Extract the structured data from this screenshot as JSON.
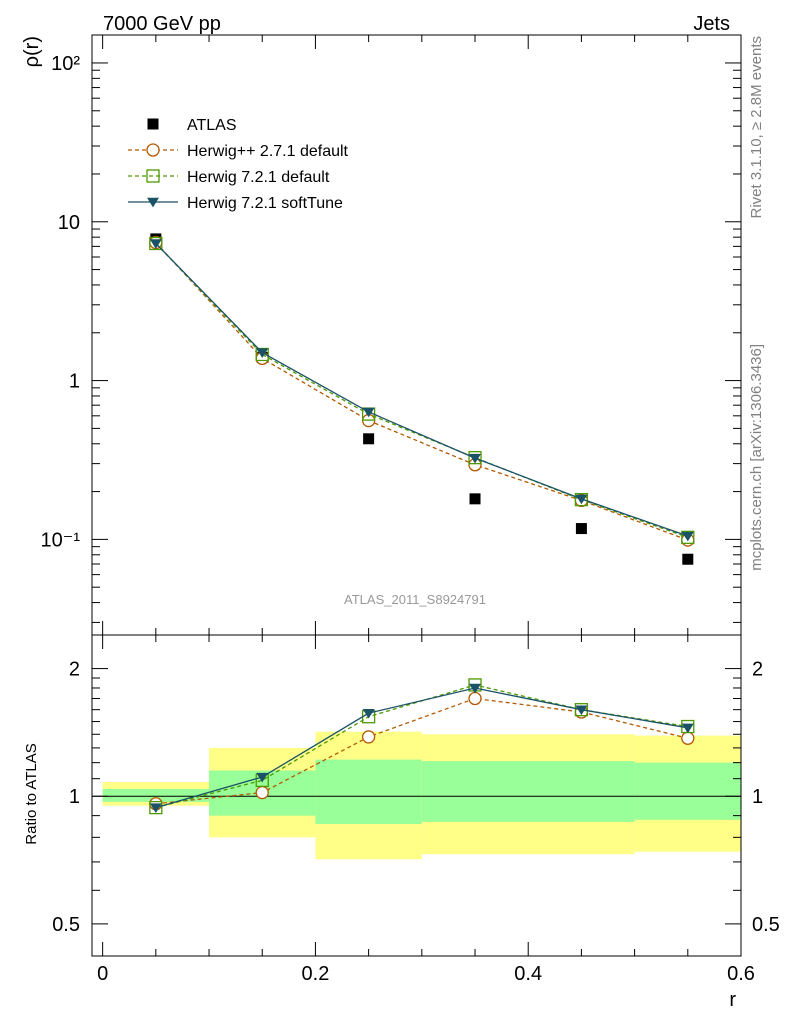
{
  "header": {
    "left": "7000 GeV pp",
    "right": "Jets"
  },
  "side_text": {
    "top": "Rivet 3.1.10, ≥ 2.8M events",
    "bottom": "mcplots.cern.ch [arXiv:1306.3436]"
  },
  "watermark": "ATLAS_2011_S8924791",
  "chart_data": [
    {
      "type": "scatter",
      "panel": "main",
      "ylabel": "ρ(r)",
      "y_scale": "log",
      "ylim": [
        0.025,
        150
      ],
      "xlim": [
        -0.01,
        0.6
      ],
      "x": [
        0.05,
        0.15,
        0.25,
        0.35,
        0.45,
        0.55
      ],
      "y_tick_labels": [
        "10⁻¹",
        "1",
        "10",
        "10²"
      ],
      "legend_position": "top-left",
      "series": [
        {
          "name": "ATLAS",
          "marker": "square-filled",
          "color": "#000000",
          "line": "none",
          "values": [
            7.8,
            1.4,
            0.43,
            0.18,
            0.117,
            0.075
          ]
        },
        {
          "name": "Herwig++ 2.7.1 default",
          "marker": "circle-open",
          "color": "#b35900",
          "line": "dashed",
          "values": [
            7.4,
            1.38,
            0.56,
            0.295,
            0.176,
            0.099
          ]
        },
        {
          "name": "Herwig 7.2.1 default",
          "marker": "square-open",
          "color": "#4d9900",
          "line": "dashed",
          "values": [
            7.3,
            1.46,
            0.615,
            0.327,
            0.178,
            0.103
          ]
        },
        {
          "name": "Herwig 7.2.1 softTune",
          "marker": "triangle-down-filled",
          "color": "#1a5266",
          "line": "solid",
          "values": [
            7.3,
            1.5,
            0.635,
            0.325,
            0.18,
            0.105
          ]
        }
      ]
    },
    {
      "type": "line",
      "panel": "ratio",
      "ylabel": "Ratio to ATLAS",
      "xlabel": "r",
      "y_scale": "log",
      "ylim": [
        0.42,
        2.4
      ],
      "xlim": [
        -0.01,
        0.6
      ],
      "x": [
        0.05,
        0.15,
        0.25,
        0.35,
        0.45,
        0.55
      ],
      "x_tick_labels": [
        "0",
        "0.2",
        "0.4",
        "0.6"
      ],
      "y_tick_labels": [
        "0.5",
        "1",
        "2"
      ],
      "bands": [
        {
          "x0": 0.0,
          "x1": 0.1,
          "yellow": [
            0.95,
            1.08
          ],
          "green": [
            0.97,
            1.04
          ]
        },
        {
          "x0": 0.1,
          "x1": 0.2,
          "yellow": [
            0.8,
            1.3
          ],
          "green": [
            0.9,
            1.15
          ]
        },
        {
          "x0": 0.2,
          "x1": 0.3,
          "yellow": [
            0.71,
            1.42
          ],
          "green": [
            0.86,
            1.22
          ]
        },
        {
          "x0": 0.3,
          "x1": 0.5,
          "yellow": [
            0.73,
            1.4
          ],
          "green": [
            0.87,
            1.21
          ]
        },
        {
          "x0": 0.5,
          "x1": 0.6,
          "yellow": [
            0.74,
            1.39
          ],
          "green": [
            0.88,
            1.2
          ]
        }
      ],
      "series": [
        {
          "name": "Herwig++ 2.7.1 default",
          "marker": "circle-open",
          "color": "#b35900",
          "line": "dashed",
          "values": [
            0.96,
            1.02,
            1.38,
            1.7,
            1.58,
            1.37
          ]
        },
        {
          "name": "Herwig 7.2.1 default",
          "marker": "square-open",
          "color": "#4d9900",
          "line": "dashed",
          "values": [
            0.94,
            1.09,
            1.54,
            1.83,
            1.6,
            1.46
          ]
        },
        {
          "name": "Herwig 7.2.1 softTune",
          "marker": "triangle-down-filled",
          "color": "#1a5266",
          "line": "solid",
          "values": [
            0.94,
            1.11,
            1.57,
            1.8,
            1.6,
            1.45
          ]
        }
      ]
    }
  ]
}
